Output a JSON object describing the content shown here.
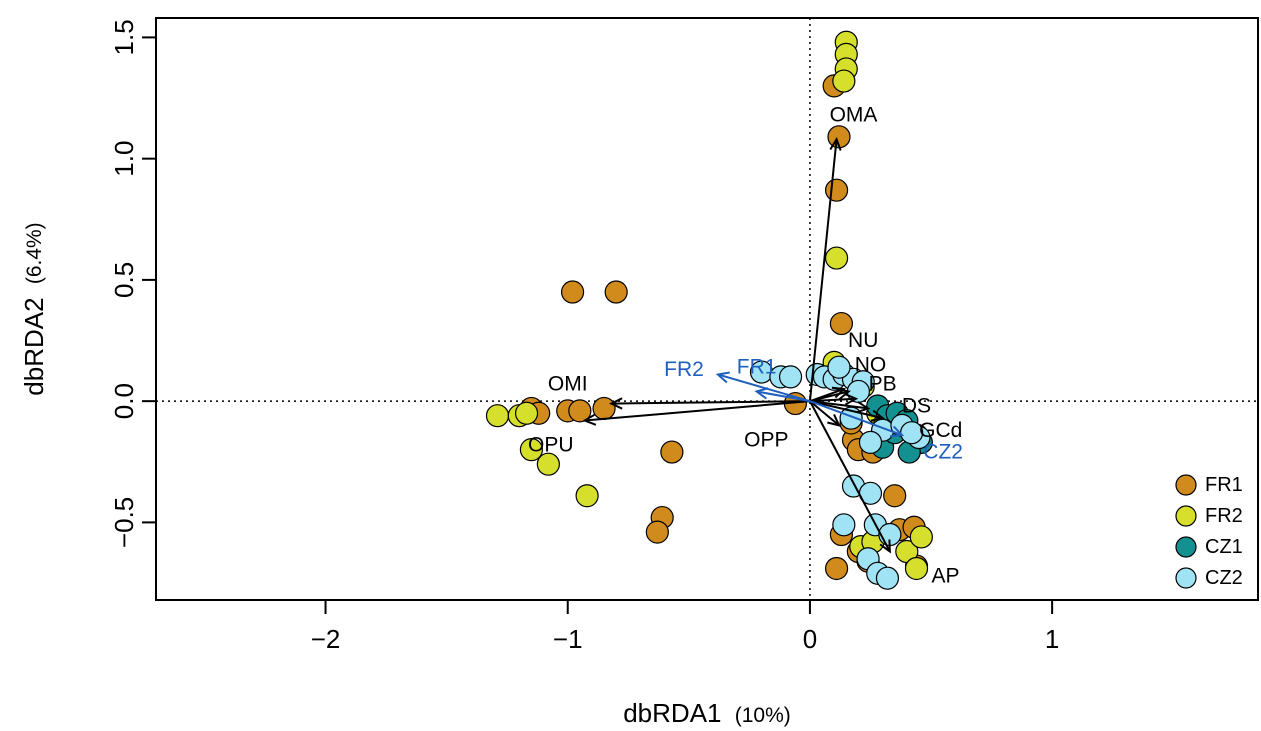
{
  "chart_data": {
    "type": "scatter",
    "xlabel": "dbRDA1",
    "xlabel_pct": "(10%)",
    "ylabel": "dbRDA2",
    "ylabel_pct": "(6.4%)",
    "xlim": [
      -2.7,
      1.85
    ],
    "ylim": [
      -0.82,
      1.58
    ],
    "x_ticks": [
      -2,
      -1,
      0,
      1
    ],
    "x_tick_labels": [
      "−2",
      "−1",
      "0",
      "1"
    ],
    "y_ticks": [
      -0.5,
      0.0,
      0.5,
      1.0,
      1.5
    ],
    "y_tick_labels": [
      "−0.5",
      "0.0",
      "0.5",
      "1.0",
      "1.5"
    ],
    "reference_lines": {
      "x": 0,
      "y": 0,
      "style": "dotted"
    },
    "legend": {
      "position": "bottom-right"
    },
    "series": [
      {
        "name": "FR1",
        "color": "#d18b1c",
        "points": [
          [
            0.1,
            1.3
          ],
          [
            0.12,
            1.09
          ],
          [
            0.11,
            0.87
          ],
          [
            0.13,
            0.32
          ],
          [
            -0.98,
            0.45
          ],
          [
            -0.8,
            0.45
          ],
          [
            -1.15,
            -0.03
          ],
          [
            -1.12,
            -0.05
          ],
          [
            -1.0,
            -0.04
          ],
          [
            -0.95,
            -0.04
          ],
          [
            -0.85,
            -0.03
          ],
          [
            -0.57,
            -0.21
          ],
          [
            -0.61,
            -0.48
          ],
          [
            -0.63,
            -0.54
          ],
          [
            -0.06,
            -0.01
          ],
          [
            0.18,
            -0.16
          ],
          [
            0.2,
            -0.2
          ],
          [
            0.26,
            -0.21
          ],
          [
            0.35,
            -0.39
          ],
          [
            0.37,
            -0.53
          ],
          [
            0.43,
            -0.52
          ],
          [
            0.13,
            -0.55
          ],
          [
            0.2,
            -0.62
          ],
          [
            0.24,
            -0.66
          ],
          [
            0.11,
            -0.69
          ],
          [
            0.44,
            -0.68
          ],
          [
            0.17,
            -0.09
          ]
        ]
      },
      {
        "name": "FR2",
        "color": "#d6e02c",
        "points": [
          [
            0.15,
            1.48
          ],
          [
            0.15,
            1.43
          ],
          [
            0.15,
            1.37
          ],
          [
            0.14,
            1.32
          ],
          [
            0.11,
            0.59
          ],
          [
            -1.29,
            -0.06
          ],
          [
            -1.2,
            -0.06
          ],
          [
            -1.17,
            -0.05
          ],
          [
            -1.15,
            -0.2
          ],
          [
            -1.08,
            -0.26
          ],
          [
            -0.92,
            -0.39
          ],
          [
            0.1,
            0.16
          ],
          [
            0.22,
            0.06
          ],
          [
            0.28,
            -0.05
          ],
          [
            0.31,
            -0.09
          ],
          [
            0.4,
            -0.62
          ],
          [
            0.46,
            -0.56
          ],
          [
            0.44,
            -0.69
          ],
          [
            0.21,
            -0.6
          ],
          [
            0.26,
            -0.58
          ]
        ]
      },
      {
        "name": "CZ1",
        "color": "#139191",
        "points": [
          [
            0.28,
            -0.02
          ],
          [
            0.32,
            -0.06
          ],
          [
            0.36,
            -0.05
          ],
          [
            0.4,
            -0.08
          ],
          [
            0.44,
            -0.14
          ],
          [
            0.46,
            -0.17
          ],
          [
            0.3,
            -0.19
          ],
          [
            0.41,
            -0.21
          ],
          [
            0.35,
            -0.13
          ]
        ]
      },
      {
        "name": "CZ2",
        "color": "#9fe3f5",
        "points": [
          [
            -0.2,
            0.12
          ],
          [
            -0.12,
            0.1
          ],
          [
            -0.08,
            0.1
          ],
          [
            0.03,
            0.11
          ],
          [
            0.06,
            0.1
          ],
          [
            0.1,
            0.09
          ],
          [
            0.14,
            0.11
          ],
          [
            0.18,
            0.09
          ],
          [
            0.22,
            0.08
          ],
          [
            0.12,
            0.14
          ],
          [
            0.2,
            0.04
          ],
          [
            0.3,
            -0.12
          ],
          [
            0.38,
            -0.1
          ],
          [
            0.45,
            -0.15
          ],
          [
            0.42,
            -0.13
          ],
          [
            0.25,
            -0.17
          ],
          [
            0.17,
            -0.07
          ],
          [
            0.18,
            -0.35
          ],
          [
            0.25,
            -0.38
          ],
          [
            0.27,
            -0.51
          ],
          [
            0.33,
            -0.55
          ],
          [
            0.24,
            -0.65
          ],
          [
            0.28,
            -0.71
          ],
          [
            0.32,
            -0.73
          ],
          [
            0.14,
            -0.51
          ]
        ]
      }
    ],
    "vectors": [
      {
        "label": "OMA",
        "x": 0.11,
        "y": 1.08,
        "label_x": 0.18,
        "label_y": 1.18
      },
      {
        "label": "OMI",
        "x": -0.82,
        "y": -0.01,
        "label_x": -1.0,
        "label_y": 0.07
      },
      {
        "label": "OPU",
        "x": -0.93,
        "y": -0.08,
        "label_x": -1.07,
        "label_y": -0.18
      },
      {
        "label": "OPP",
        "x": 0.12,
        "y": -0.1,
        "label_x": -0.18,
        "label_y": -0.16
      },
      {
        "label": "NU",
        "x": 0.14,
        "y": 0.05,
        "label_x": 0.22,
        "label_y": 0.25
      },
      {
        "label": "NO",
        "x": 0.16,
        "y": 0.04,
        "label_x": 0.25,
        "label_y": 0.15
      },
      {
        "label": "PB",
        "x": 0.19,
        "y": 0.01,
        "label_x": 0.3,
        "label_y": 0.07
      },
      {
        "label": "DS",
        "x": 0.24,
        "y": -0.03,
        "label_x": 0.44,
        "label_y": -0.02
      },
      {
        "label": "GCd",
        "x": 0.3,
        "y": -0.07,
        "label_x": 0.54,
        "label_y": -0.12
      },
      {
        "label": "AP",
        "x": 0.33,
        "y": -0.62,
        "label_x": 0.56,
        "label_y": -0.72
      }
    ],
    "group_vectors": [
      {
        "label": "FR2",
        "x": -0.38,
        "y": 0.11,
        "label_x": -0.52,
        "label_y": 0.13
      },
      {
        "label": "FR1",
        "x": -0.22,
        "y": 0.04,
        "label_x": -0.22,
        "label_y": 0.14
      },
      {
        "label": "CZ2",
        "x": 0.38,
        "y": -0.14,
        "label_x": 0.55,
        "label_y": -0.21
      }
    ],
    "vector_color": "#000000",
    "group_vector_color": "#1f5fbf"
  }
}
